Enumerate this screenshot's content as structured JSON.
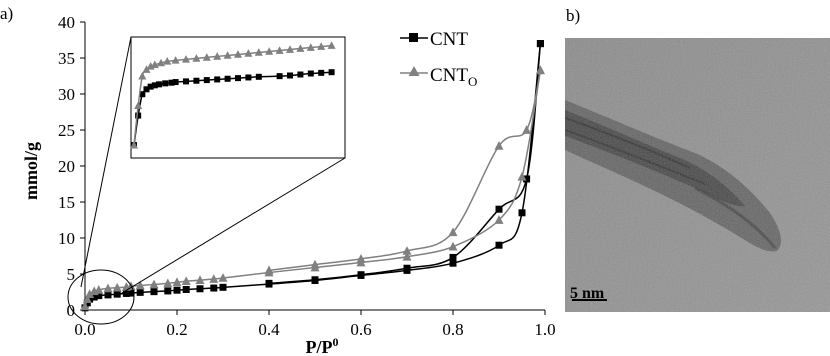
{
  "panel_labels": {
    "a": "a)",
    "b": "b)"
  },
  "chart_data": {
    "type": "line",
    "xlabel": "P/P⁰",
    "ylabel": "mmol/g",
    "xlim": [
      0,
      1
    ],
    "ylim": [
      0,
      40
    ],
    "x_ticks": [
      0.0,
      0.2,
      0.4,
      0.6,
      0.8,
      1.0
    ],
    "x_tick_labels": [
      "0.0",
      "0.2",
      "0.4",
      "0.6",
      "0.8",
      "1.0"
    ],
    "y_ticks": [
      0,
      5,
      10,
      15,
      20,
      25,
      30,
      35,
      40
    ],
    "y_tick_labels": [
      "0",
      "5",
      "10",
      "15",
      "20",
      "25",
      "30",
      "35",
      "40"
    ],
    "legend_position": "top-right",
    "series": [
      {
        "name": "CNT",
        "legend_main": "CNT",
        "legend_sub": "",
        "color": "#000000",
        "marker": "square",
        "adsorption": {
          "x": [
            0.0,
            0.005,
            0.01,
            0.02,
            0.03,
            0.05,
            0.07,
            0.09,
            0.1,
            0.12,
            0.15,
            0.18,
            0.2,
            0.22,
            0.25,
            0.28,
            0.3,
            0.4,
            0.5,
            0.6,
            0.7,
            0.8,
            0.9,
            0.95,
            0.99
          ],
          "y": [
            0.3,
            1.0,
            1.5,
            1.8,
            2.0,
            2.1,
            2.2,
            2.3,
            2.35,
            2.45,
            2.55,
            2.65,
            2.75,
            2.85,
            2.95,
            3.05,
            3.15,
            3.6,
            4.1,
            4.8,
            5.5,
            6.5,
            9.0,
            13.5,
            37.0
          ]
        },
        "desorption": {
          "x": [
            0.99,
            0.96,
            0.9,
            0.8,
            0.7,
            0.6,
            0.5,
            0.4
          ],
          "y": [
            37.0,
            18.2,
            14.0,
            7.3,
            5.8,
            4.9,
            4.2,
            3.7
          ]
        },
        "inset_points": {
          "x": [
            0.0,
            0.002,
            0.004,
            0.006,
            0.008,
            0.01,
            0.012,
            0.015,
            0.018,
            0.02,
            0.025,
            0.03,
            0.035,
            0.04,
            0.045,
            0.05,
            0.055,
            0.06,
            0.07,
            0.075,
            0.08,
            0.085,
            0.09,
            0.095
          ],
          "y": [
            0.3,
            1.2,
            1.85,
            2.0,
            2.08,
            2.12,
            2.15,
            2.18,
            2.2,
            2.22,
            2.24,
            2.26,
            2.28,
            2.3,
            2.32,
            2.34,
            2.36,
            2.38,
            2.4,
            2.42,
            2.45,
            2.48,
            2.5,
            2.52
          ]
        }
      },
      {
        "name": "CNTO",
        "legend_main": "CNT",
        "legend_sub": "O",
        "color": "#808080",
        "marker": "triangle",
        "adsorption": {
          "x": [
            0.0,
            0.005,
            0.01,
            0.02,
            0.03,
            0.05,
            0.07,
            0.09,
            0.1,
            0.12,
            0.15,
            0.18,
            0.2,
            0.22,
            0.25,
            0.28,
            0.3,
            0.4,
            0.5,
            0.6,
            0.7,
            0.8,
            0.9,
            0.95,
            0.99
          ],
          "y": [
            0.5,
            1.5,
            2.2,
            2.6,
            2.8,
            3.0,
            3.1,
            3.2,
            3.3,
            3.4,
            3.55,
            3.7,
            3.85,
            4.0,
            4.15,
            4.3,
            4.45,
            5.2,
            5.9,
            6.6,
            7.4,
            8.8,
            12.5,
            18.5,
            33.3
          ]
        },
        "desorption": {
          "x": [
            0.99,
            0.96,
            0.9,
            0.8,
            0.7,
            0.6,
            0.5,
            0.4
          ],
          "y": [
            33.3,
            25.0,
            22.8,
            10.8,
            8.2,
            7.1,
            6.3,
            5.5
          ]
        },
        "inset_points": {
          "x": [
            0.0,
            0.002,
            0.004,
            0.006,
            0.008,
            0.01,
            0.013,
            0.016,
            0.02,
            0.025,
            0.03,
            0.035,
            0.04,
            0.045,
            0.05,
            0.055,
            0.06,
            0.065,
            0.07,
            0.075,
            0.08,
            0.085,
            0.09,
            0.095
          ],
          "y": [
            0.3,
            1.5,
            2.4,
            2.6,
            2.7,
            2.75,
            2.8,
            2.85,
            2.88,
            2.91,
            2.94,
            2.97,
            3.0,
            3.03,
            3.06,
            3.09,
            3.12,
            3.15,
            3.18,
            3.21,
            3.24,
            3.27,
            3.3,
            3.33
          ]
        }
      }
    ],
    "inset": {
      "xlim": [
        0,
        0.1
      ],
      "ylim": [
        0,
        3.5
      ]
    }
  },
  "tem_image": {
    "scale_bar_label": "5 nm"
  }
}
